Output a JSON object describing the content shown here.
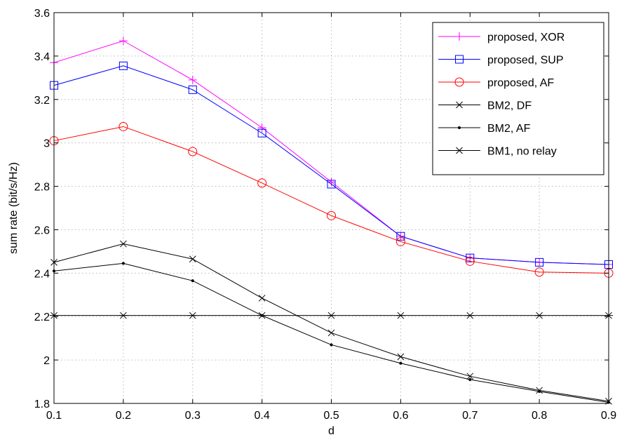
{
  "chart_data": {
    "type": "line",
    "title": "",
    "xlabel": "d",
    "ylabel": "sum rate (bit/s/Hz)",
    "xlim": [
      0.1,
      0.9
    ],
    "ylim": [
      1.8,
      3.6
    ],
    "grid": true,
    "legend_position": "top-right",
    "x": [
      0.1,
      0.2,
      0.3,
      0.4,
      0.5,
      0.6,
      0.7,
      0.8,
      0.9
    ],
    "x_tick_labels": [
      "0.1",
      "0.2",
      "0.3",
      "0.4",
      "0.5",
      "0.6",
      "0.7",
      "0.8",
      "0.9"
    ],
    "y_ticks": [
      1.8,
      2,
      2.2,
      2.4,
      2.6,
      2.8,
      3,
      3.2,
      3.4,
      3.6
    ],
    "y_tick_labels": [
      "1.8",
      "2",
      "2.2",
      "2.4",
      "2.6",
      "2.8",
      "3",
      "3.2",
      "3.4",
      "3.6"
    ],
    "series": [
      {
        "name": "proposed, XOR",
        "color": "#ff00ff",
        "marker": "plus",
        "values": [
          3.37,
          3.47,
          3.29,
          3.07,
          2.82,
          2.57,
          2.47,
          2.45,
          2.44
        ]
      },
      {
        "name": "proposed, SUP",
        "color": "#0000ff",
        "marker": "square",
        "values": [
          3.265,
          3.355,
          3.245,
          3.045,
          2.81,
          2.57,
          2.47,
          2.45,
          2.44
        ]
      },
      {
        "name": "proposed, AF",
        "color": "#ff0000",
        "marker": "circle",
        "values": [
          3.01,
          3.075,
          2.96,
          2.815,
          2.665,
          2.545,
          2.455,
          2.405,
          2.4
        ]
      },
      {
        "name": "BM2, DF",
        "color": "#000000",
        "marker": "x",
        "values": [
          2.45,
          2.535,
          2.465,
          2.285,
          2.125,
          2.015,
          1.925,
          1.86,
          1.81
        ]
      },
      {
        "name": "BM2, AF",
        "color": "#000000",
        "marker": "dot",
        "values": [
          2.41,
          2.445,
          2.365,
          2.205,
          2.07,
          1.985,
          1.91,
          1.855,
          1.805
        ]
      },
      {
        "name": "BM1, no relay",
        "color": "#000000",
        "marker": "asterisk",
        "values": [
          2.205,
          2.205,
          2.205,
          2.205,
          2.205,
          2.205,
          2.205,
          2.205,
          2.205
        ]
      }
    ]
  }
}
